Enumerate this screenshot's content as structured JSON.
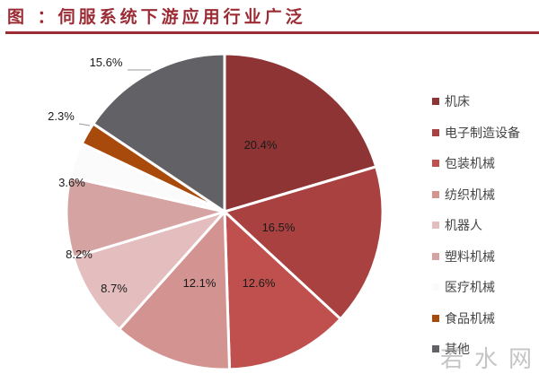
{
  "header": {
    "title": "图  ：伺服系统下游应用行业广泛",
    "accent_color": "#9b2c35"
  },
  "chart_data": {
    "type": "pie",
    "title": "伺服系统下游应用行业广泛",
    "start_angle": "12 o'clock, clockwise",
    "legend_position": "right",
    "categories": [
      "机床",
      "电子制造设备",
      "包装机械",
      "纺织机械",
      "机器人",
      "塑料机械",
      "医疗机械",
      "食品机械",
      "其他"
    ],
    "values": [
      20.4,
      16.5,
      12.6,
      12.1,
      8.7,
      8.2,
      3.6,
      2.3,
      15.6
    ],
    "labels": [
      "20.4%",
      "16.5%",
      "12.6%",
      "12.1%",
      "8.7%",
      "8.2%",
      "3.6%",
      "2.3%",
      "15.6%"
    ],
    "colors": [
      "#8e3434",
      "#a8413f",
      "#c0504d",
      "#d39391",
      "#e4bebe",
      "#d6a3a3",
      "#fbfbfb",
      "#a84a0c",
      "#616166"
    ]
  },
  "legend": {
    "items": [
      {
        "label": "机床",
        "color": "#8e3434"
      },
      {
        "label": "电子制造设备",
        "color": "#a8413f"
      },
      {
        "label": "包装机械",
        "color": "#c0504d"
      },
      {
        "label": "纺织机械",
        "color": "#d39391"
      },
      {
        "label": "机器人",
        "color": "#e4bebe"
      },
      {
        "label": "塑料机械",
        "color": "#d6a3a3"
      },
      {
        "label": "医疗机械",
        "color": "#fbfbfb"
      },
      {
        "label": "食品机械",
        "color": "#a84a0c"
      },
      {
        "label": "其他",
        "color": "#616166"
      }
    ]
  },
  "watermark": {
    "text": "若水网"
  }
}
